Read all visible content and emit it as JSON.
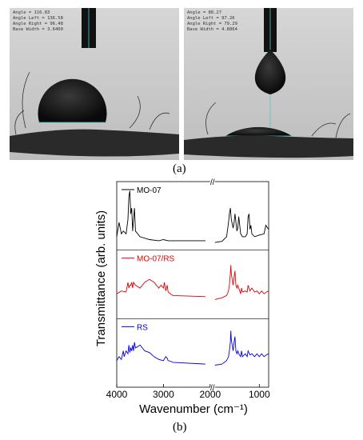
{
  "panel_a": {
    "label": "(a)",
    "left_readout": [
      {
        "name": "Angle",
        "value": "116.83"
      },
      {
        "name": "Angle Left",
        "value": "136.58"
      },
      {
        "name": "Angle Right",
        "value": "96.48"
      },
      {
        "name": "Base Width",
        "value": "3.6400"
      }
    ],
    "right_readout": [
      {
        "name": "Angle",
        "value": "88.27"
      },
      {
        "name": "Angle Left",
        "value": "97.26"
      },
      {
        "name": "Angle Right",
        "value": "79.29"
      },
      {
        "name": "Base Width",
        "value": "4.8864"
      }
    ]
  },
  "panel_b_label": "(b)",
  "chart_data": {
    "type": "line",
    "xlabel": "Wavenumber (cm⁻¹)",
    "ylabel": "Transmittance (arb. units)",
    "x_ticks": [
      "4000",
      "3000",
      "2000",
      "1000"
    ],
    "x_reversed": true,
    "x_axis_break": [
      2000,
      1950
    ],
    "xlim": [
      4000,
      800
    ],
    "legend_position": "top-left of each stacked panel",
    "series": [
      {
        "name": "MO-07",
        "color": "#000000",
        "x": [
          4000,
          3950,
          3900,
          3860,
          3800,
          3760,
          3740,
          3720,
          3700,
          3680,
          3660,
          3640,
          3620,
          3600,
          3500,
          3300,
          3100,
          3000,
          2900,
          2100,
          1950,
          1800,
          1700,
          1660,
          1640,
          1620,
          1600,
          1560,
          1540,
          1520,
          1480,
          1460,
          1440,
          1400,
          1360,
          1300,
          1260,
          1240,
          1220,
          1200,
          1180,
          1160,
          1100,
          1000,
          900,
          860,
          820,
          800
        ],
        "y": [
          0.85,
          0.6,
          0.8,
          0.75,
          0.8,
          0.55,
          0.15,
          0.05,
          0.45,
          0.35,
          0.75,
          0.55,
          0.35,
          0.75,
          0.85,
          0.9,
          0.92,
          0.9,
          0.92,
          0.92,
          0.95,
          0.93,
          0.85,
          0.6,
          0.45,
          0.35,
          0.55,
          0.7,
          0.6,
          0.45,
          0.75,
          0.7,
          0.5,
          0.8,
          0.85,
          0.85,
          0.8,
          0.5,
          0.45,
          0.72,
          0.65,
          0.8,
          0.85,
          0.82,
          0.8,
          0.65,
          0.7,
          0.72
        ]
      },
      {
        "name": "MO-07/RS",
        "color": "#e00000",
        "x": [
          4000,
          3900,
          3800,
          3760,
          3740,
          3720,
          3700,
          3680,
          3660,
          3640,
          3600,
          3500,
          3400,
          3300,
          3200,
          3100,
          3050,
          3000,
          2980,
          2950,
          2920,
          2900,
          2850,
          2800,
          2100,
          1950,
          1800,
          1700,
          1660,
          1640,
          1620,
          1610,
          1600,
          1580,
          1560,
          1540,
          1520,
          1510,
          1500,
          1480,
          1460,
          1440,
          1400,
          1380,
          1360,
          1300,
          1260,
          1240,
          1200,
          1160,
          1100,
          1050,
          1000,
          950,
          900,
          850,
          800
        ],
        "y": [
          0.65,
          0.6,
          0.62,
          0.45,
          0.55,
          0.5,
          0.5,
          0.45,
          0.55,
          0.45,
          0.5,
          0.55,
          0.45,
          0.4,
          0.45,
          0.55,
          0.5,
          0.55,
          0.45,
          0.6,
          0.5,
          0.62,
          0.65,
          0.68,
          0.7,
          0.75,
          0.72,
          0.68,
          0.6,
          0.5,
          0.3,
          0.15,
          0.3,
          0.4,
          0.5,
          0.35,
          0.25,
          0.4,
          0.5,
          0.55,
          0.5,
          0.55,
          0.65,
          0.55,
          0.62,
          0.6,
          0.62,
          0.5,
          0.6,
          0.55,
          0.62,
          0.6,
          0.65,
          0.6,
          0.65,
          0.62,
          0.6
        ]
      },
      {
        "name": "RS",
        "color": "#0000dd",
        "x": [
          4000,
          3950,
          3900,
          3860,
          3840,
          3800,
          3760,
          3740,
          3720,
          3700,
          3680,
          3660,
          3640,
          3620,
          3600,
          3500,
          3400,
          3300,
          3200,
          3100,
          3000,
          2950,
          2920,
          2900,
          2850,
          2800,
          2100,
          1950,
          1800,
          1700,
          1660,
          1640,
          1620,
          1610,
          1600,
          1580,
          1560,
          1540,
          1520,
          1510,
          1500,
          1480,
          1460,
          1440,
          1400,
          1380,
          1360,
          1300,
          1260,
          1240,
          1200,
          1160,
          1100,
          1050,
          1000,
          950,
          900,
          850,
          800
        ],
        "y": [
          0.62,
          0.55,
          0.6,
          0.45,
          0.55,
          0.45,
          0.5,
          0.35,
          0.48,
          0.4,
          0.45,
          0.35,
          0.45,
          0.3,
          0.4,
          0.35,
          0.45,
          0.48,
          0.55,
          0.6,
          0.62,
          0.55,
          0.58,
          0.62,
          0.63,
          0.65,
          0.68,
          0.7,
          0.68,
          0.62,
          0.55,
          0.45,
          0.3,
          0.1,
          0.25,
          0.35,
          0.45,
          0.3,
          0.2,
          0.35,
          0.45,
          0.5,
          0.45,
          0.5,
          0.55,
          0.45,
          0.55,
          0.5,
          0.55,
          0.45,
          0.52,
          0.5,
          0.55,
          0.5,
          0.55,
          0.5,
          0.55,
          0.52,
          0.5
        ]
      }
    ]
  }
}
